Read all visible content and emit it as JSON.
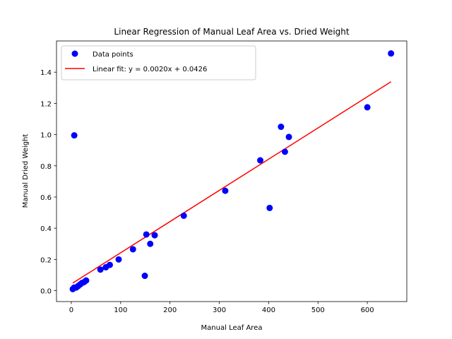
{
  "chart_data": {
    "type": "scatter",
    "title": "Linear Regression of Manual Leaf Area vs. Dried Weight",
    "xlabel": "Manual Leaf Area",
    "ylabel": "Manual Dried Weight",
    "xlim": [
      -30,
      680
    ],
    "ylim": [
      -0.07,
      1.6
    ],
    "xticks": [
      0,
      100,
      200,
      300,
      400,
      500,
      600
    ],
    "yticks": [
      0.0,
      0.2,
      0.4,
      0.6,
      0.8,
      1.0,
      1.2,
      1.4
    ],
    "grid": false,
    "legend": "upper-left",
    "series": [
      {
        "name": "Data points",
        "kind": "scatter",
        "color": "#0000ff",
        "points": [
          {
            "x": 3,
            "y": 0.01
          },
          {
            "x": 6,
            "y": 0.02
          },
          {
            "x": 10,
            "y": 0.02
          },
          {
            "x": 14,
            "y": 0.03
          },
          {
            "x": 18,
            "y": 0.04
          },
          {
            "x": 22,
            "y": 0.05
          },
          {
            "x": 26,
            "y": 0.055
          },
          {
            "x": 30,
            "y": 0.065
          },
          {
            "x": 6,
            "y": 0.995
          },
          {
            "x": 59,
            "y": 0.135
          },
          {
            "x": 70,
            "y": 0.15
          },
          {
            "x": 78,
            "y": 0.165
          },
          {
            "x": 96,
            "y": 0.2
          },
          {
            "x": 125,
            "y": 0.265
          },
          {
            "x": 149,
            "y": 0.095
          },
          {
            "x": 152,
            "y": 0.36
          },
          {
            "x": 160,
            "y": 0.3
          },
          {
            "x": 169,
            "y": 0.355
          },
          {
            "x": 228,
            "y": 0.48
          },
          {
            "x": 312,
            "y": 0.64
          },
          {
            "x": 383,
            "y": 0.835
          },
          {
            "x": 402,
            "y": 0.53
          },
          {
            "x": 425,
            "y": 1.05
          },
          {
            "x": 433,
            "y": 0.89
          },
          {
            "x": 441,
            "y": 0.985
          },
          {
            "x": 600,
            "y": 1.175
          },
          {
            "x": 648,
            "y": 1.52
          }
        ]
      },
      {
        "name": "Linear fit: y = 0.0020x + 0.0426",
        "kind": "line",
        "color": "#ff0000",
        "slope": 0.002,
        "intercept": 0.0426,
        "x_range": [
          3,
          648
        ]
      }
    ]
  }
}
